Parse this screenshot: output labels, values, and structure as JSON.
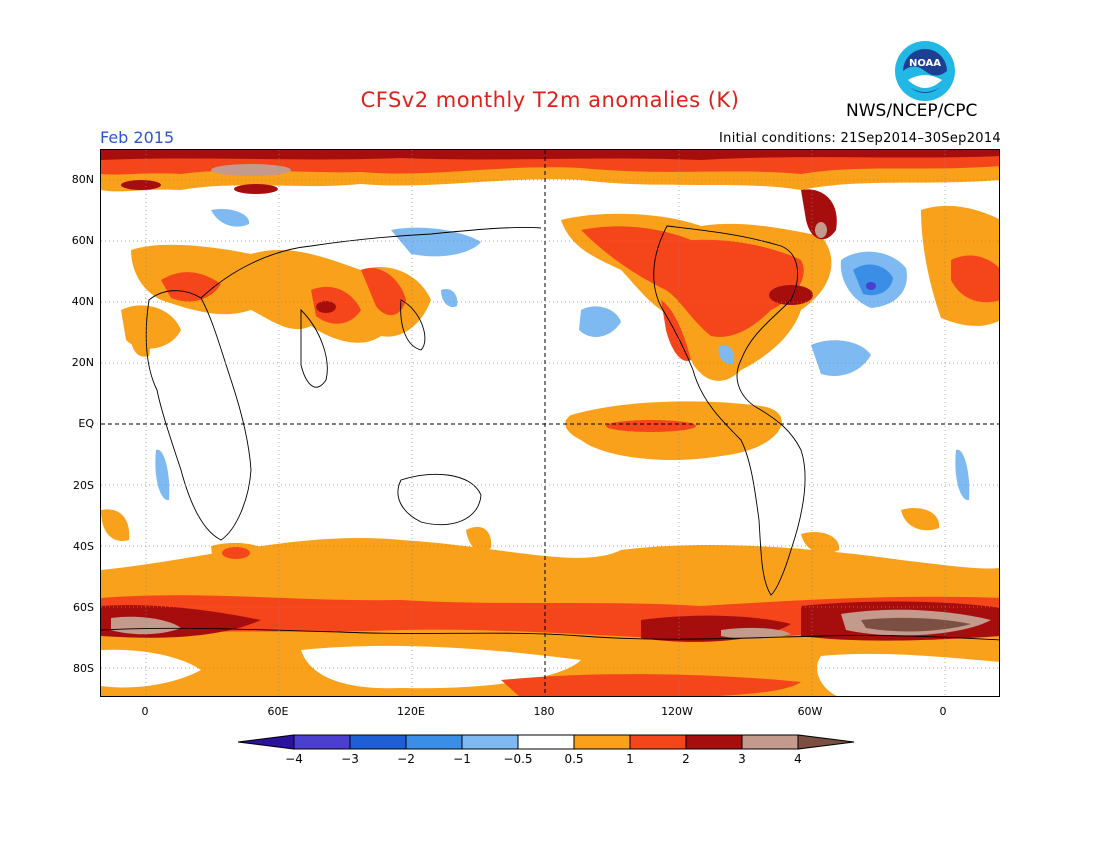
{
  "header": {
    "title": "CFSv2 monthly T2m anomalies (K)",
    "agency": "NWS/NCEP/CPC",
    "logo_text": "NOAA",
    "month": "Feb 2015",
    "initial_conditions": "Initial conditions: 21Sep2014–30Sep2014"
  },
  "axes": {
    "lat_labels": [
      "80N",
      "60N",
      "40N",
      "20N",
      "EQ",
      "20S",
      "40S",
      "60S",
      "80S"
    ],
    "lon_labels": [
      "0",
      "60E",
      "120E",
      "180",
      "120W",
      "60W",
      "0"
    ]
  },
  "colorbar": {
    "tick_labels": [
      "−4",
      "−3",
      "−2",
      "−1",
      "−0.5",
      "0.5",
      "1",
      "2",
      "3",
      "4"
    ],
    "colors": [
      "#2a129e",
      "#4a3fcf",
      "#1f5fd6",
      "#3b8ee6",
      "#7fb9f2",
      "#ffffff",
      "#f9a11b",
      "#f5451a",
      "#a60e0e",
      "#c39a8c",
      "#7b4f41"
    ]
  }
}
